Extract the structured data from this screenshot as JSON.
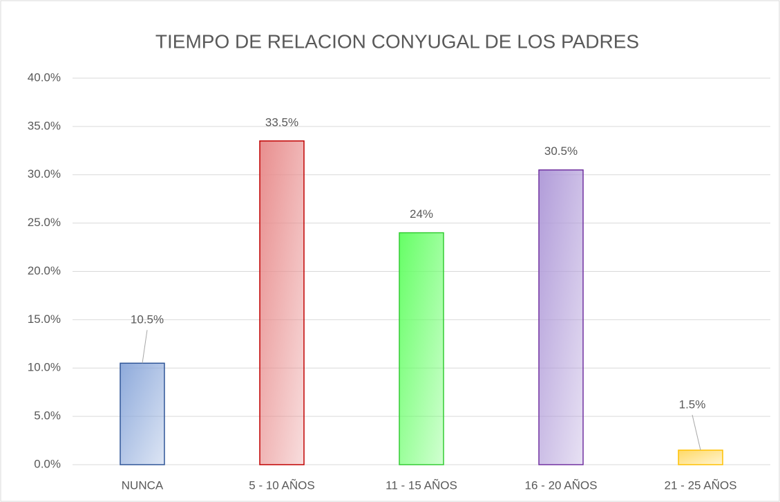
{
  "chart_data": {
    "type": "bar",
    "title": "TIEMPO DE RELACION CONYUGAL DE LOS PADRES",
    "categories": [
      "NUNCA",
      "5 - 10 AÑOS",
      "11 - 15 AÑOS",
      "16 - 20 AÑOS",
      "21 - 25 AÑOS"
    ],
    "values": [
      10.5,
      33.5,
      24,
      30.5,
      1.5
    ],
    "value_labels": [
      "10.5%",
      "33.5%",
      "24%",
      "30.5%",
      "1.5%"
    ],
    "colors": [
      "#8eaadb",
      "#e88e8e",
      "#66ff66",
      "#b19cd9",
      "#ffd966"
    ],
    "border_colors": [
      "#2f5597",
      "#c00000",
      "#33cc33",
      "#7030a0",
      "#ffc000"
    ],
    "ylim": [
      0,
      40
    ],
    "yticks": [
      {
        "value": 0,
        "label": "0.0%"
      },
      {
        "value": 5,
        "label": "5.0%"
      },
      {
        "value": 10,
        "label": "10.0%"
      },
      {
        "value": 15,
        "label": "15.0%"
      },
      {
        "value": 20,
        "label": "20.0%"
      },
      {
        "value": 25,
        "label": "25.0%"
      },
      {
        "value": 30,
        "label": "30.0%"
      },
      {
        "value": 35,
        "label": "35.0%"
      },
      {
        "value": 40,
        "label": "40.0%"
      }
    ],
    "grid": true
  }
}
